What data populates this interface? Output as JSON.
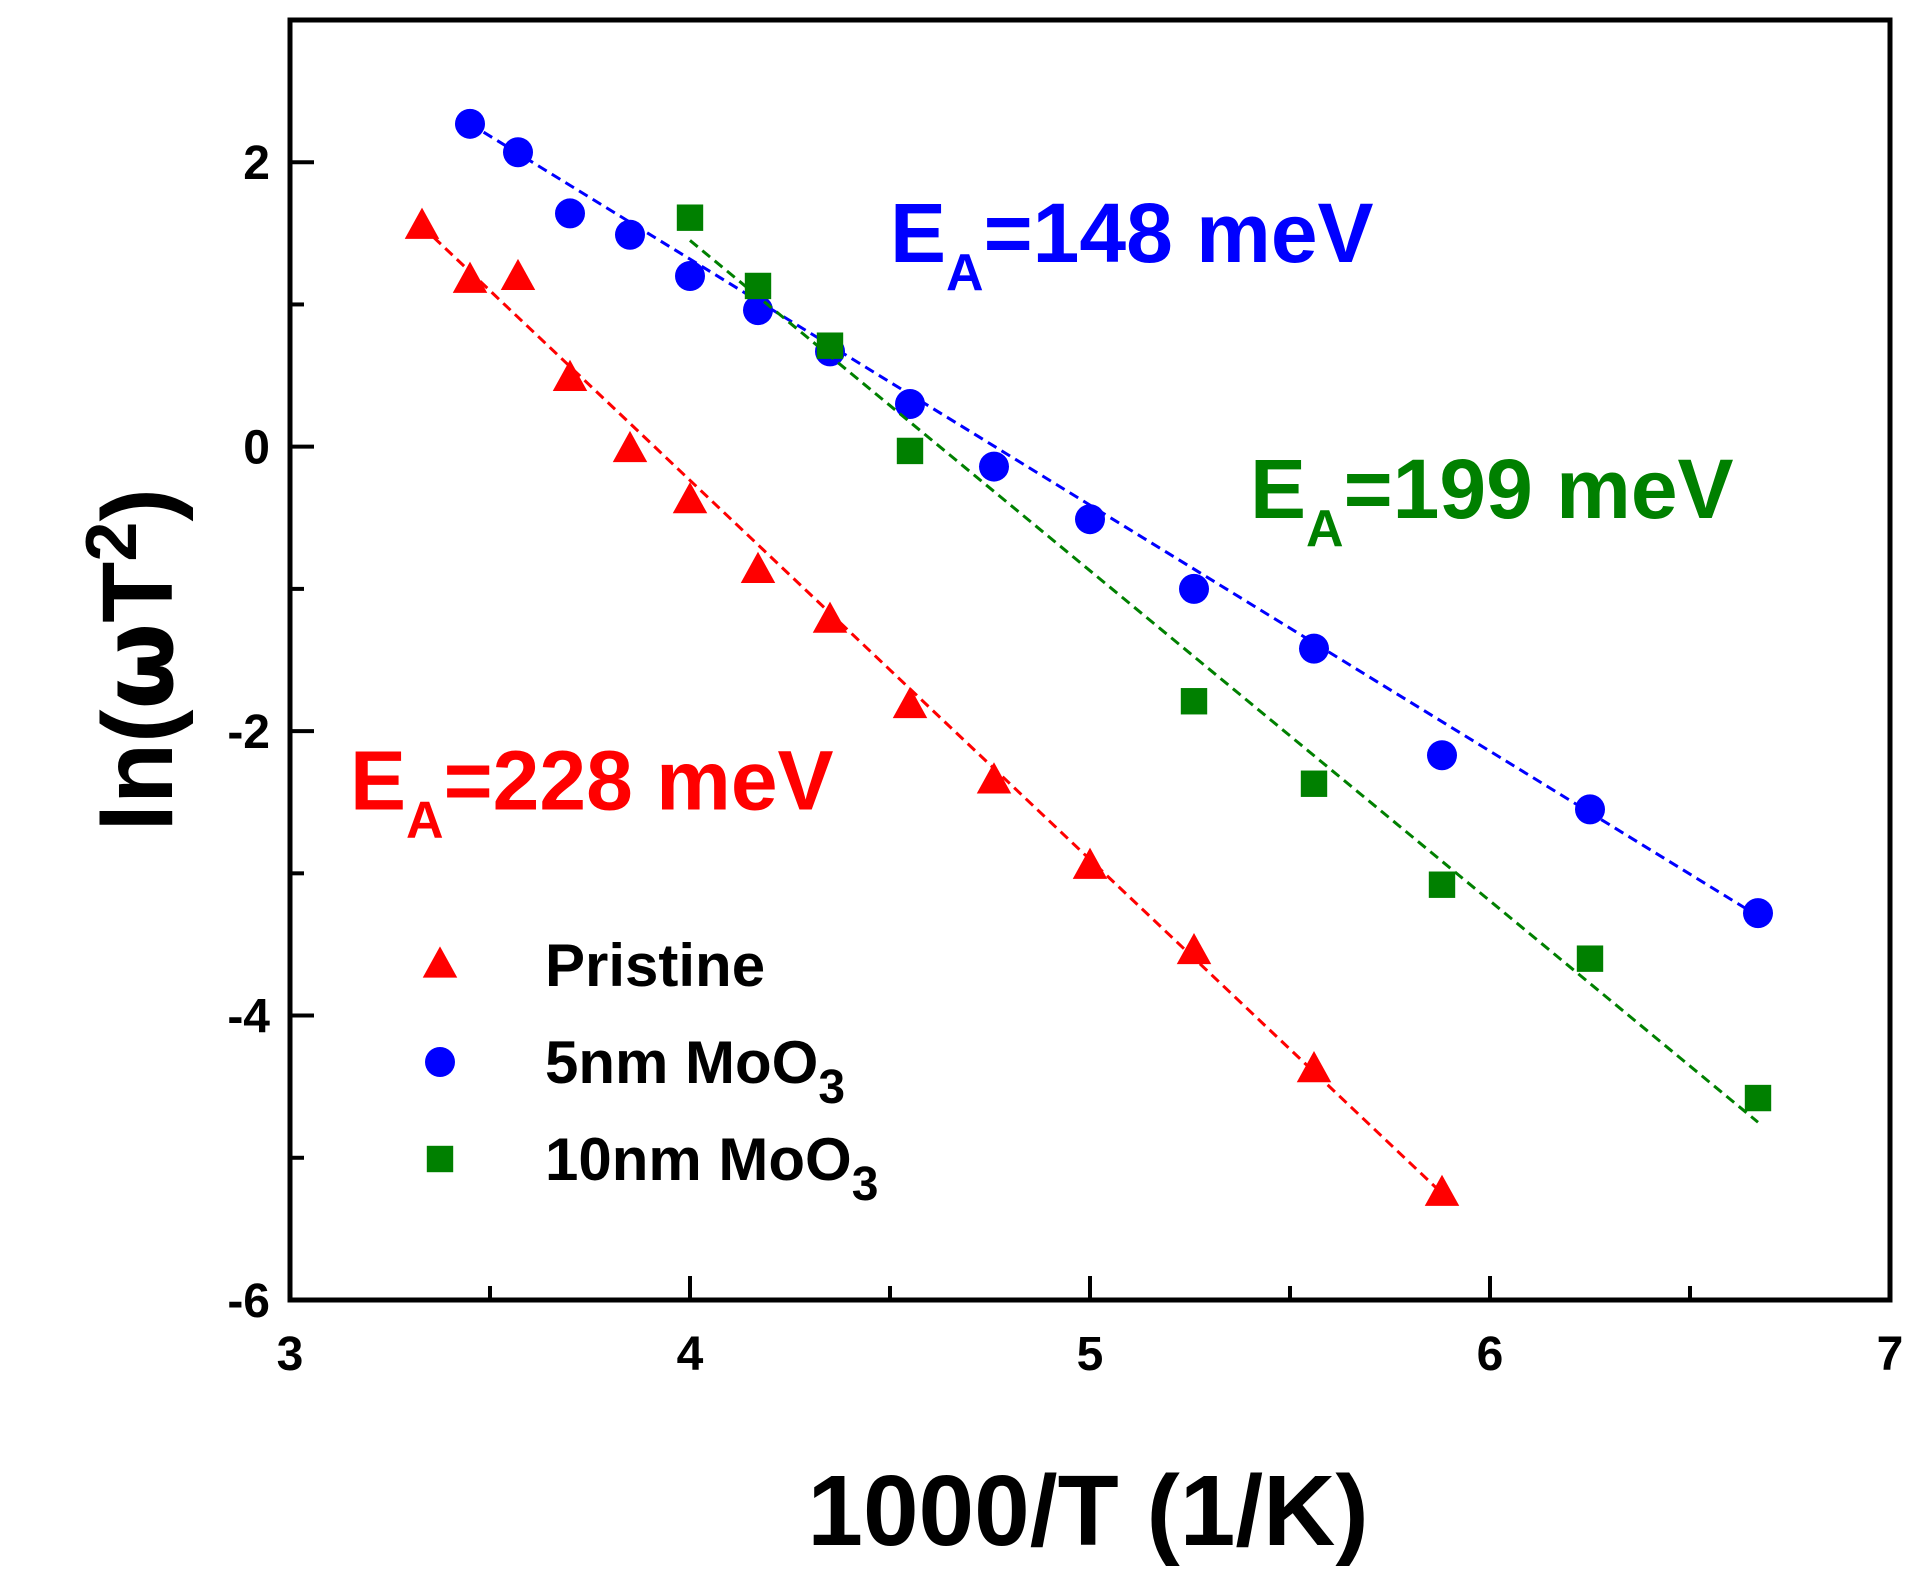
{
  "chart_data": {
    "type": "scatter",
    "xlabel": "1000/T (1/K)",
    "ylabel": {
      "prefix": "ln(",
      "greek": "ω",
      "var": "T",
      "sup": "2",
      "suffix": ")"
    },
    "xlim": [
      3,
      7
    ],
    "ylim": [
      -6,
      3
    ],
    "x_ticks": [
      3,
      4,
      5,
      6,
      7
    ],
    "y_ticks": [
      -6,
      -4,
      -2,
      0,
      2
    ],
    "grid": false,
    "legend_position": "bottom-left",
    "series": [
      {
        "name": "Pristine",
        "name_main": "Pristine",
        "name_sub": "",
        "marker": "triangle",
        "color": "#ff0000",
        "x": [
          3.33,
          3.45,
          3.57,
          3.7,
          3.85,
          4.0,
          4.17,
          4.35,
          4.55,
          4.76,
          5.0,
          5.26,
          5.56,
          5.88
        ],
        "y": [
          1.55,
          1.17,
          1.19,
          0.48,
          -0.02,
          -0.38,
          -0.87,
          -1.22,
          -1.82,
          -2.35,
          -2.95,
          -3.55,
          -4.38,
          -5.25
        ],
        "fit": {
          "x": [
            3.33,
            5.88
          ],
          "y": [
            1.55,
            -5.25
          ]
        }
      },
      {
        "name": "5nm MoO3",
        "name_main": "5nm MoO",
        "name_sub": "3",
        "marker": "circle",
        "color": "#0000ff",
        "x": [
          3.45,
          3.57,
          3.7,
          3.85,
          4.0,
          4.17,
          4.35,
          4.55,
          4.76,
          5.0,
          5.26,
          5.56,
          5.88,
          6.25,
          6.67
        ],
        "y": [
          2.27,
          2.07,
          1.64,
          1.49,
          1.2,
          0.96,
          0.67,
          0.3,
          -0.14,
          -0.51,
          -1.0,
          -1.42,
          -2.17,
          -2.55,
          -3.28
        ],
        "fit": {
          "x": [
            3.45,
            6.67
          ],
          "y": [
            2.27,
            -3.3
          ]
        }
      },
      {
        "name": "10nm MoO3",
        "name_main": "10nm MoO",
        "name_sub": "3",
        "marker": "square",
        "color": "#008000",
        "x": [
          4.0,
          4.17,
          4.35,
          4.55,
          5.26,
          5.56,
          5.88,
          6.25,
          6.67
        ],
        "y": [
          1.61,
          1.13,
          0.71,
          -0.03,
          -1.79,
          -2.37,
          -3.08,
          -3.6,
          -4.58
        ],
        "fit": {
          "x": [
            4.0,
            6.67
          ],
          "y": [
            1.45,
            -4.75
          ]
        }
      }
    ],
    "annotations": [
      {
        "main": "E",
        "sub": "A",
        "value": "=148 meV",
        "color": "#0000ff",
        "at": [
          4.5,
          1.3
        ]
      },
      {
        "main": "E",
        "sub": "A",
        "value": "=199 meV",
        "color": "#008000",
        "at": [
          5.4,
          -0.5
        ]
      },
      {
        "main": "E",
        "sub": "A",
        "value": "=228 meV",
        "color": "#ff0000",
        "at": [
          3.15,
          -2.55
        ]
      }
    ]
  }
}
